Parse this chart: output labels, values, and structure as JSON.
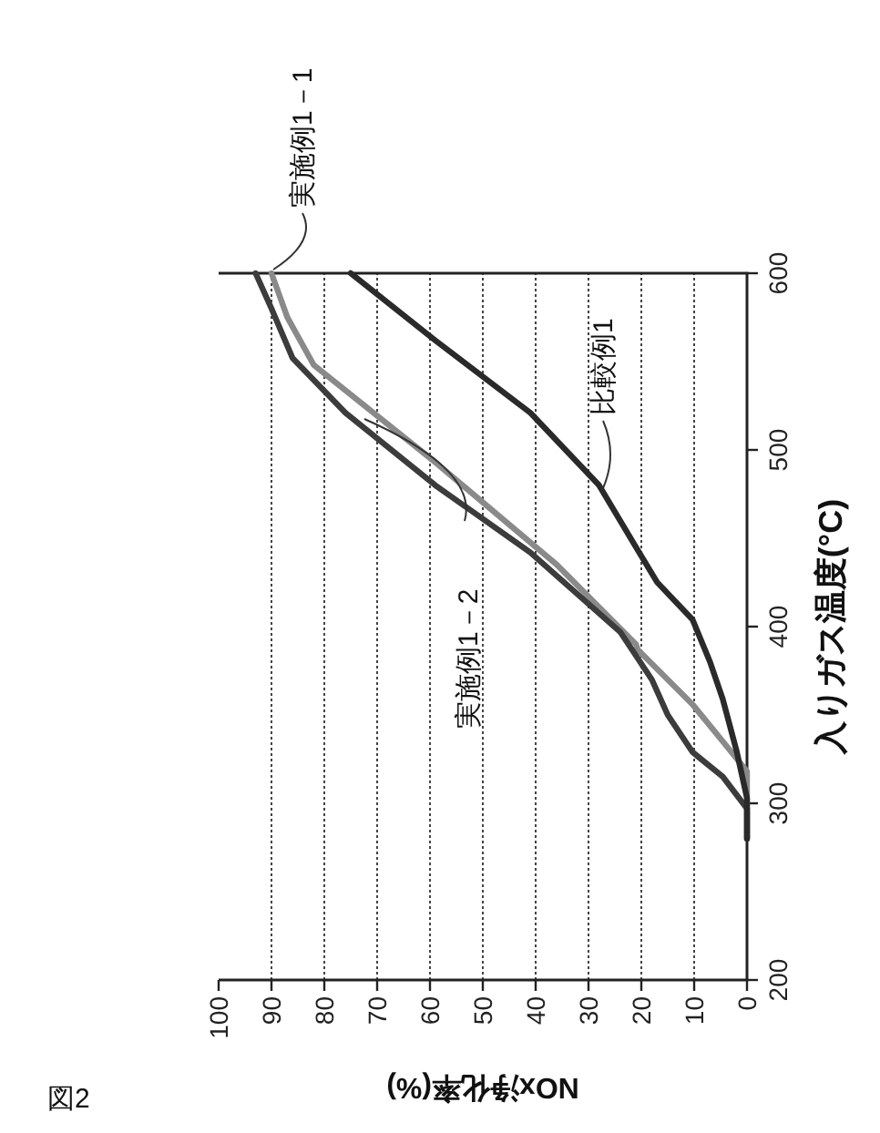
{
  "chart_data": {
    "type": "line",
    "xlabel": "NOx浄化率(%)",
    "ylabel": "入りガス温度(°C)",
    "annotations": [
      "図2"
    ],
    "xlim": [
      100,
      0
    ],
    "xticks": [
      100,
      90,
      80,
      70,
      60,
      50,
      40,
      30,
      20,
      10,
      0
    ],
    "ylim": [
      200,
      600
    ],
    "yticks": [
      200,
      300,
      400,
      500,
      600
    ],
    "grid": "x",
    "legend": false,
    "marker": "none",
    "line_style": "solid",
    "series": [
      {
        "name": "実施例1－1",
        "color": "#8a8a8a",
        "x": [
          0,
          0,
          0,
          4.6,
          10.3,
          20.7,
          21,
          36,
          59,
          82,
          87,
          90
        ],
        "values": [
          280,
          300,
          318,
          335,
          356,
          387,
          390,
          435,
          493,
          548,
          575,
          600
        ]
      },
      {
        "name": "実施例1－2",
        "color": "#3c3c3c",
        "x": [
          0,
          0,
          4.6,
          10.3,
          15,
          18,
          24,
          41,
          59,
          76,
          86,
          90,
          93
        ],
        "values": [
          280,
          297,
          315,
          329,
          350,
          370,
          397,
          442,
          480,
          521,
          552,
          580,
          600
        ]
      },
      {
        "name": "比較例1",
        "color": "#2a2a2a",
        "x": [
          0,
          0,
          2,
          4.6,
          7,
          10.3,
          17,
          21,
          28,
          41,
          59,
          75
        ],
        "values": [
          280,
          303,
          330,
          359,
          380,
          404,
          425,
          445,
          480,
          521,
          562,
          600
        ]
      }
    ]
  }
}
